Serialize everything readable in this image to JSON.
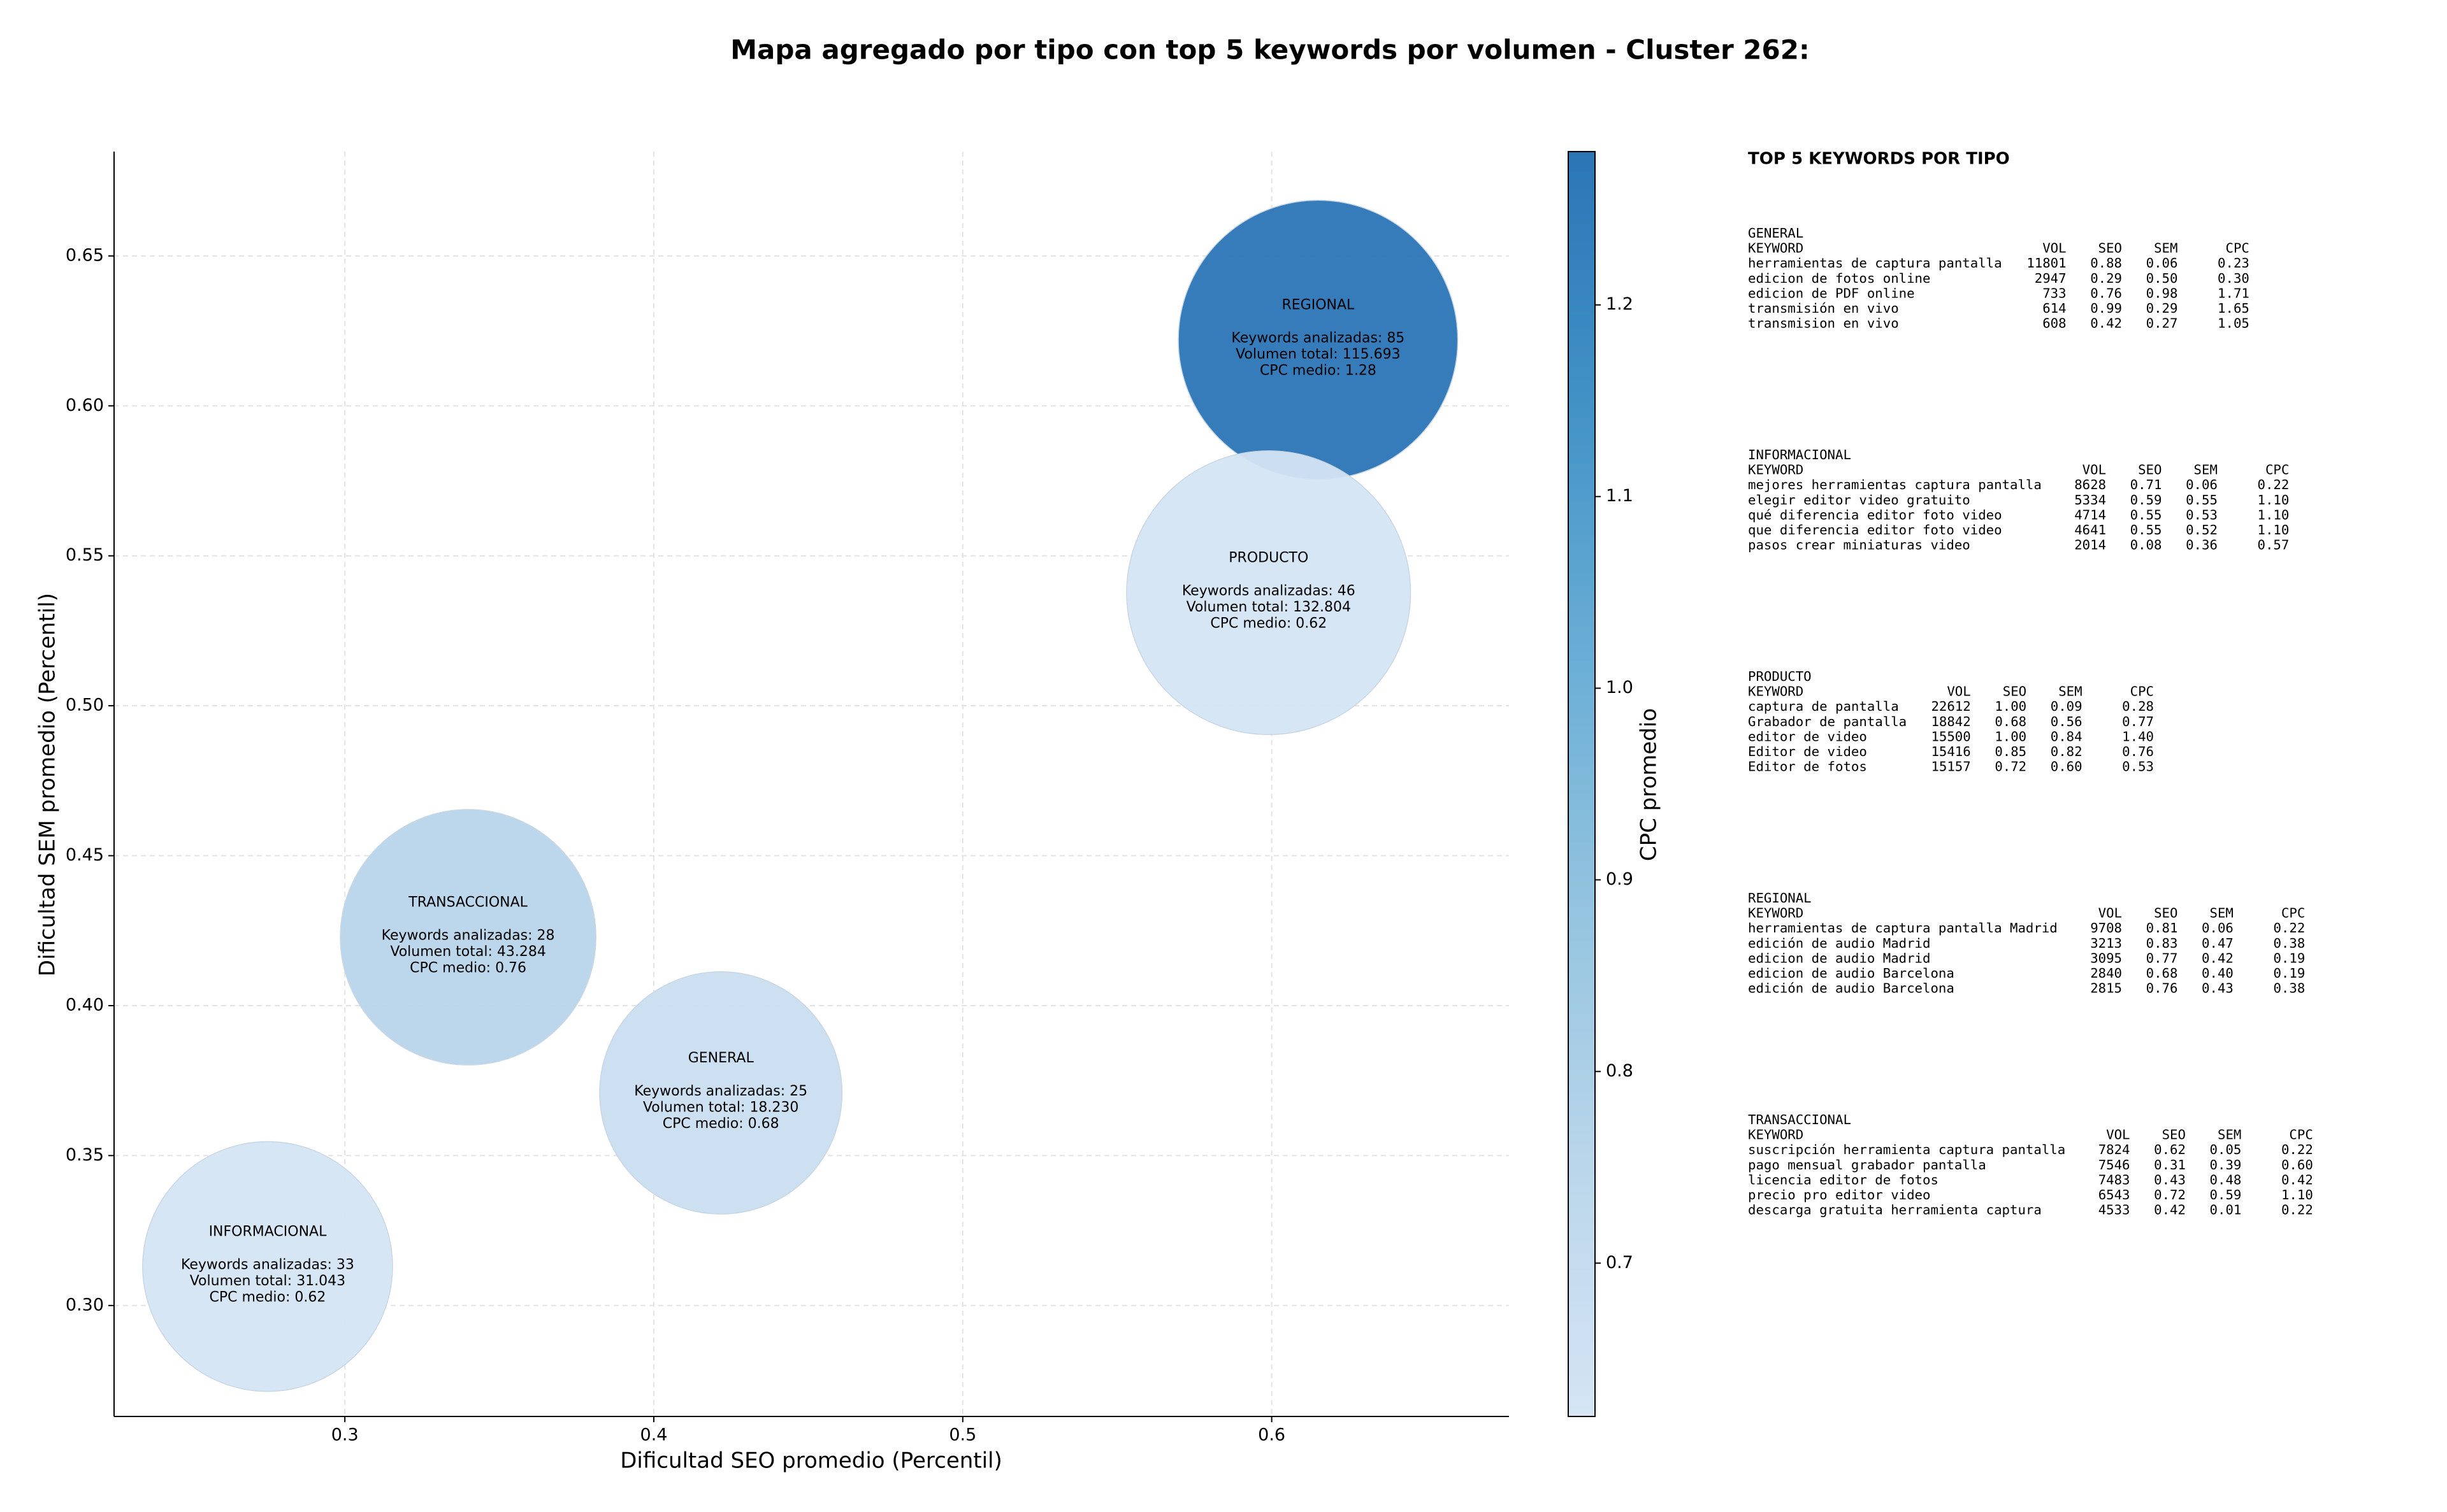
{
  "chart_data": {
    "type": "bubble",
    "title": "Mapa agregado por tipo con top 5 keywords por volumen - Cluster 262:",
    "x_label": "Dificultad SEO promedio (Percentil)",
    "y_label": "Dificultad SEM promedio (Percentil)",
    "colorbar_label": "CPC promedio",
    "colormap": "Blues",
    "grid": true,
    "xlim": [
      0.2253,
      0.6768
    ],
    "ylim": [
      0.263,
      0.6848
    ],
    "xticks": [
      0.3,
      0.4,
      0.5,
      0.6
    ],
    "yticks": [
      {
        "value": 0.3,
        "label": "0.30"
      },
      {
        "value": 0.35,
        "label": "0.35"
      },
      {
        "value": 0.4,
        "label": "0.40"
      },
      {
        "value": 0.45,
        "label": "0.45"
      },
      {
        "value": 0.5,
        "label": "0.50"
      },
      {
        "value": 0.55,
        "label": "0.55"
      },
      {
        "value": 0.6,
        "label": "0.60"
      },
      {
        "value": 0.65,
        "label": "0.65"
      }
    ],
    "colorbar_ticks": [
      0.7,
      0.8,
      0.9,
      1.0,
      1.1,
      1.2
    ],
    "points": [
      {
        "name": "REGIONAL",
        "x": 0.615,
        "y": 0.622,
        "size": 115693,
        "color_value": 1.28,
        "annotation": [
          "Keywords analizadas: 85",
          "Volumen total: 115.693",
          "CPC medio: 1.28"
        ]
      },
      {
        "name": "PRODUCTO",
        "x": 0.599,
        "y": 0.5377,
        "size": 132804,
        "color_value": 0.62,
        "annotation": [
          "Keywords analizadas: 46",
          "Volumen total: 132.804",
          "CPC medio: 0.62"
        ]
      },
      {
        "name": "TRANSACCIONAL",
        "x": 0.3399,
        "y": 0.4228,
        "size": 43284,
        "color_value": 0.76,
        "annotation": [
          "Keywords analizadas: 28",
          "Volumen total: 43.284",
          "CPC medio: 0.76"
        ]
      },
      {
        "name": "GENERAL",
        "x": 0.4217,
        "y": 0.3709,
        "size": 18230,
        "color_value": 0.68,
        "annotation": [
          "Keywords analizadas: 25",
          "Volumen total: 18.230",
          "CPC medio: 0.68"
        ]
      },
      {
        "name": "INFORMACIONAL",
        "x": 0.275,
        "y": 0.313,
        "size": 31043,
        "color_value": 0.62,
        "annotation": [
          "Keywords analizadas: 33",
          "Volumen total: 31.043",
          "CPC medio: 0.62"
        ]
      }
    ]
  },
  "side_panel": {
    "title": "TOP 5 KEYWORDS POR TIPO",
    "groups": [
      {
        "name": "GENERAL",
        "header": [
          "KEYWORD",
          "VOL",
          "SEO",
          "SEM",
          "CPC"
        ],
        "rows": [
          [
            "herramientas de captura pantalla",
            "11801",
            "0.88",
            "0.06",
            "0.23"
          ],
          [
            "edicion de fotos online",
            "2947",
            "0.29",
            "0.50",
            "0.30"
          ],
          [
            "edicion de PDF online",
            "733",
            "0.76",
            "0.98",
            "1.71"
          ],
          [
            "transmisión en vivo",
            "614",
            "0.99",
            "0.29",
            "1.65"
          ],
          [
            "transmision en vivo",
            "608",
            "0.42",
            "0.27",
            "1.05"
          ]
        ]
      },
      {
        "name": "INFORMACIONAL",
        "header": [
          "KEYWORD",
          "VOL",
          "SEO",
          "SEM",
          "CPC"
        ],
        "rows": [
          [
            "mejores herramientas captura pantalla",
            "8628",
            "0.71",
            "0.06",
            "0.22"
          ],
          [
            "elegir editor video gratuito",
            "5334",
            "0.59",
            "0.55",
            "1.10"
          ],
          [
            "qué diferencia editor foto video",
            "4714",
            "0.55",
            "0.53",
            "1.10"
          ],
          [
            "que diferencia editor foto video",
            "4641",
            "0.55",
            "0.52",
            "1.10"
          ],
          [
            "pasos crear miniaturas video",
            "2014",
            "0.08",
            "0.36",
            "0.57"
          ]
        ]
      },
      {
        "name": "PRODUCTO",
        "header": [
          "KEYWORD",
          "VOL",
          "SEO",
          "SEM",
          "CPC"
        ],
        "rows": [
          [
            "captura de pantalla",
            "22612",
            "1.00",
            "0.09",
            "0.28"
          ],
          [
            "Grabador de pantalla",
            "18842",
            "0.68",
            "0.56",
            "0.77"
          ],
          [
            "editor de video",
            "15500",
            "1.00",
            "0.84",
            "1.40"
          ],
          [
            "Editor de video",
            "15416",
            "0.85",
            "0.82",
            "0.76"
          ],
          [
            "Editor de fotos",
            "15157",
            "0.72",
            "0.60",
            "0.53"
          ]
        ]
      },
      {
        "name": "REGIONAL",
        "header": [
          "KEYWORD",
          "VOL",
          "SEO",
          "SEM",
          "CPC"
        ],
        "rows": [
          [
            "herramientas de captura pantalla Madrid",
            "9708",
            "0.81",
            "0.06",
            "0.22"
          ],
          [
            "edición de audio Madrid",
            "3213",
            "0.83",
            "0.47",
            "0.38"
          ],
          [
            "edicion de audio Madrid",
            "3095",
            "0.77",
            "0.42",
            "0.19"
          ],
          [
            "edicion de audio Barcelona",
            "2840",
            "0.68",
            "0.40",
            "0.19"
          ],
          [
            "edición de audio Barcelona",
            "2815",
            "0.76",
            "0.43",
            "0.38"
          ]
        ]
      },
      {
        "name": "TRANSACCIONAL",
        "header": [
          "KEYWORD",
          "VOL",
          "SEO",
          "SEM",
          "CPC"
        ],
        "rows": [
          [
            "suscripción herramienta captura pantalla",
            "7824",
            "0.62",
            "0.05",
            "0.22"
          ],
          [
            "pago mensual grabador pantalla",
            "7546",
            "0.31",
            "0.39",
            "0.60"
          ],
          [
            "licencia editor de fotos",
            "7483",
            "0.43",
            "0.48",
            "0.42"
          ],
          [
            "precio pro editor video",
            "6543",
            "0.72",
            "0.59",
            "1.10"
          ],
          [
            "descarga gratuita herramienta captura",
            "4533",
            "0.42",
            "0.01",
            "0.22"
          ]
        ]
      }
    ]
  }
}
